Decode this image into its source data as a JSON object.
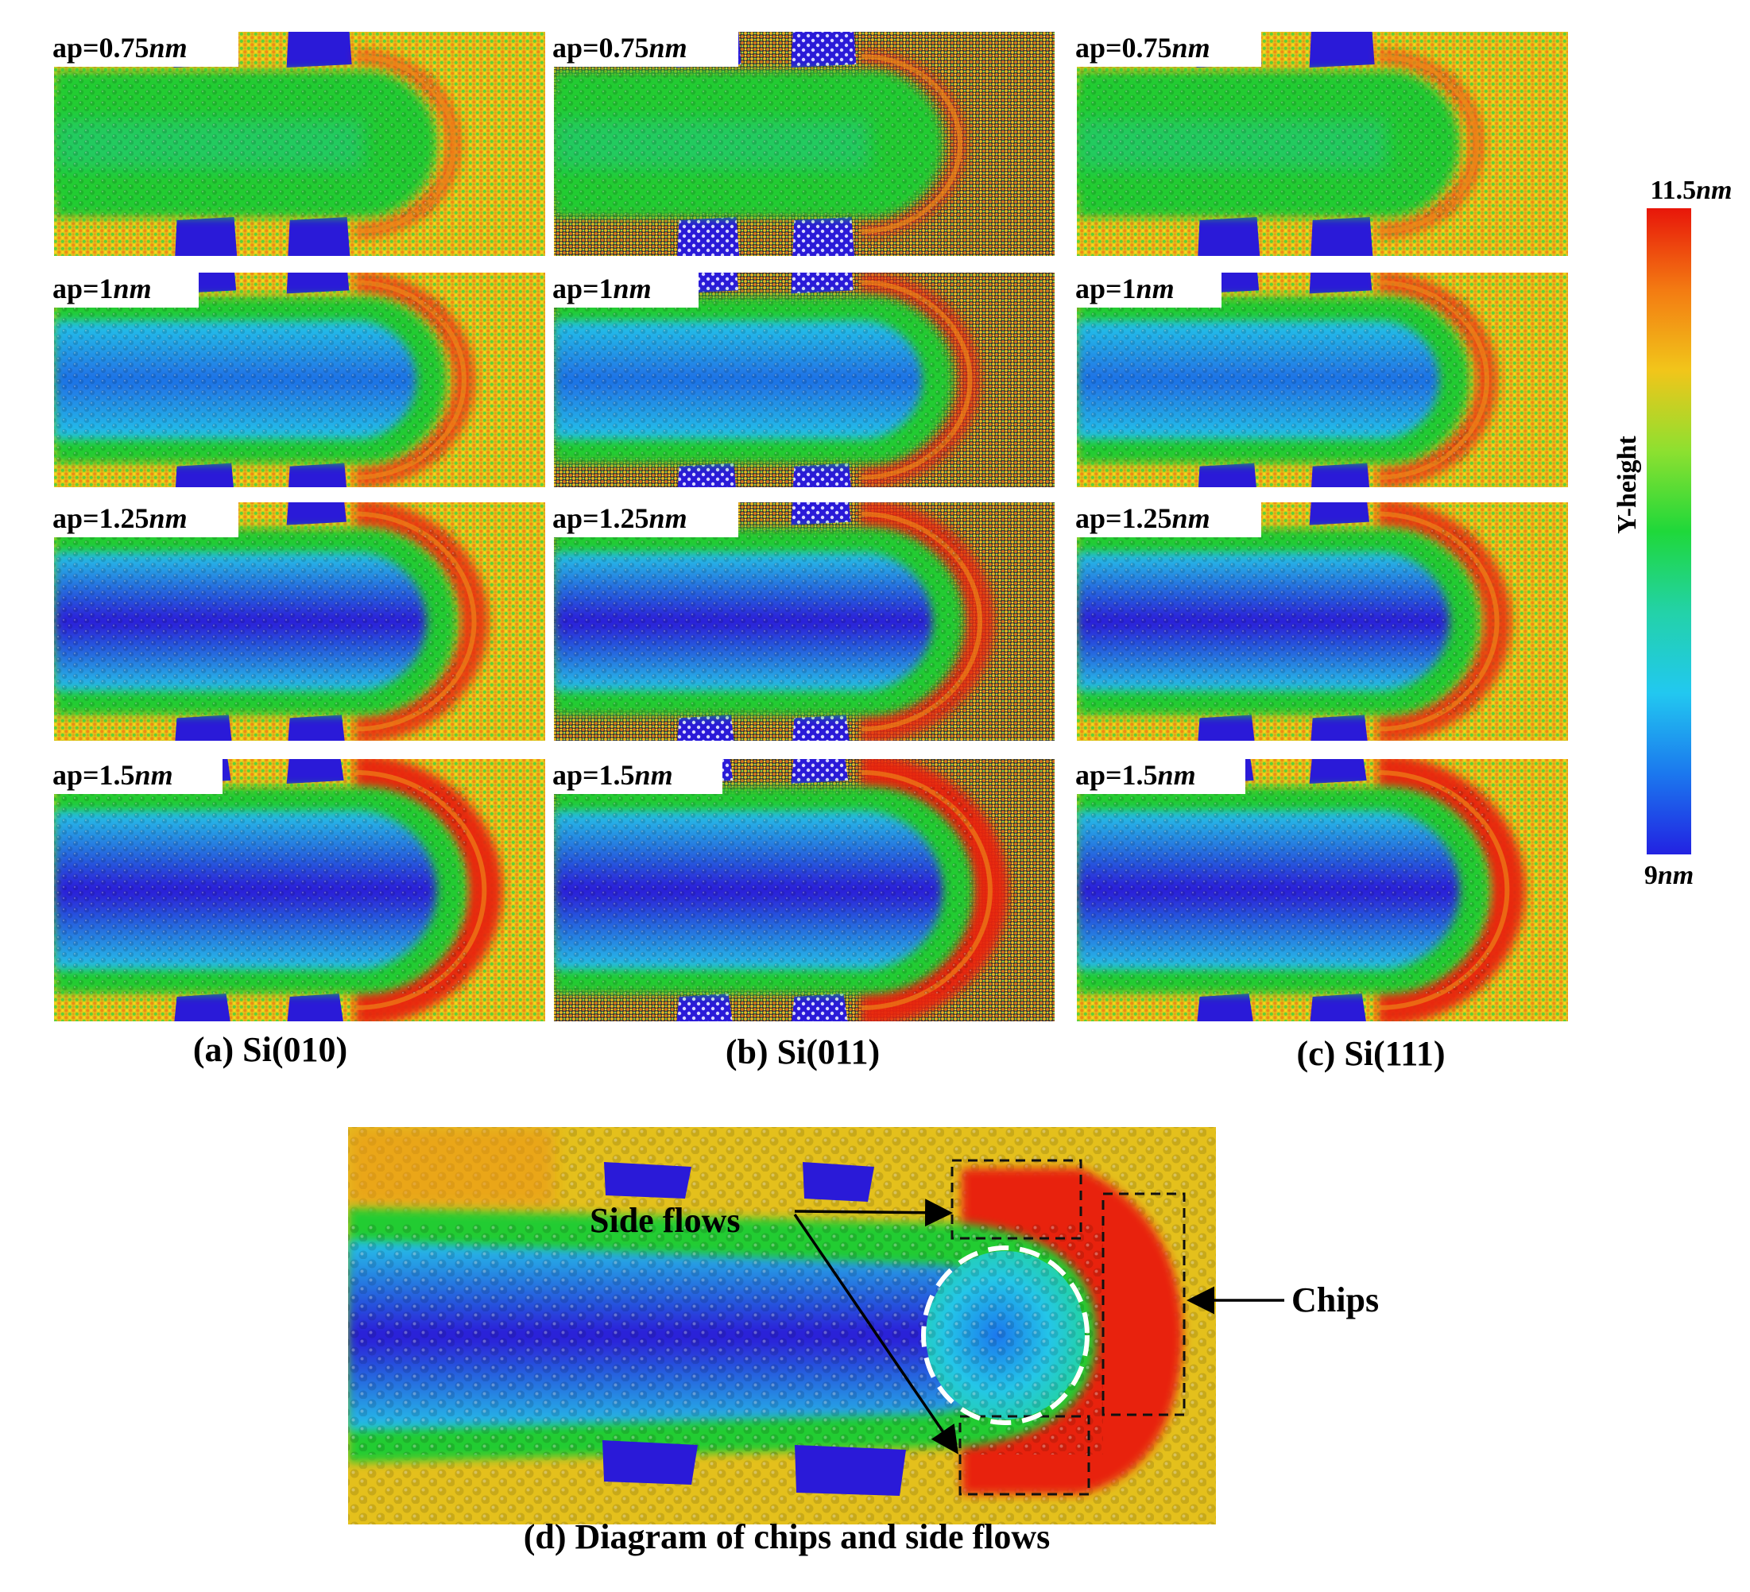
{
  "columns": [
    {
      "caption": "(a) Si(010)",
      "lattice": "square"
    },
    {
      "caption": "(b) Si(011)",
      "lattice": "hex"
    },
    {
      "caption": "(c) Si(111)",
      "lattice": "square"
    }
  ],
  "rows": [
    {
      "prefix": "ap=",
      "value": "0.75",
      "unit": "nm",
      "depth": 0.75
    },
    {
      "prefix": "ap=",
      "value": "1",
      "unit": "nm",
      "depth": 1.0
    },
    {
      "prefix": "ap=",
      "value": "1.25",
      "unit": "nm",
      "depth": 1.25
    },
    {
      "prefix": "ap=",
      "value": "1.5",
      "unit": "nm",
      "depth": 1.5
    }
  ],
  "colorbar": {
    "title": "Y-height",
    "max_value": "11.5",
    "min_value": "9",
    "unit": "nm",
    "stops": [
      "#e8160a",
      "#f37a12",
      "#f2c51a",
      "#8ee030",
      "#1fd83a",
      "#23d2a8",
      "#22c8f0",
      "#1b78ee",
      "#2222e2"
    ]
  },
  "detail": {
    "caption": "(d) Diagram of chips and side flows",
    "side_flows_label": "Side flows",
    "chips_label": "Chips"
  },
  "colors": {
    "groove_blue": "#1f6fe6",
    "groove_cyan": "#24c6e8",
    "shoulder_green": "#22cc33",
    "chip_red": "#e8240e",
    "void_blue": "#2a1ad8",
    "surface_yellow": "#e6d21c",
    "surface_orange": "#ef8f18"
  }
}
